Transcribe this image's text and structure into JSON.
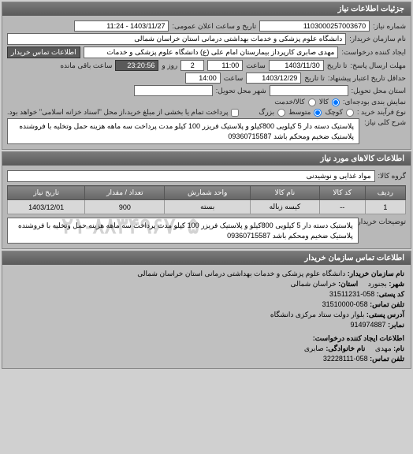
{
  "panels": {
    "details_header": "جزئیات اطلاعات نیاز",
    "goods_header": "اطلاعات کالاهای مورد نیاز",
    "contact_header": "اطلاعات تماس سازمان خریدار"
  },
  "labels": {
    "request_no": "شماره نیاز:",
    "announce_datetime": "تاریخ و ساعت اعلان عمومی:",
    "buyer_name": "نام سازمان خریدار:",
    "requester": "ایجاد کننده درخواست:",
    "buyer_contact": "اطلاعات تماس خریدار",
    "deadline_send": "مهلت ارسال پاسخ:",
    "to_date": "تا تاریخ",
    "hour": "ساعت",
    "days_and": "روز و",
    "remaining": "ساعت باقی مانده",
    "min_validity": "حداقل تاریخ اعتبار پیشنهاد:",
    "delivery_province": "استان محل تحویل:",
    "delivery_city": "شهر محل تحویل:",
    "display_budget": "نمایش بندی بودجه‌ای:",
    "kala": "کالا",
    "kharid": "کالا/خدمت",
    "agreement_type": "نوع فرآیند خرید :",
    "small": "کوچک",
    "medium": "متوسط",
    "large": "بزرگ",
    "full_payment": "پرداخت تمام یا بخشی از مبلغ خرید،از محل \"اسناد خزانه اسلامی\" خواهد بود.",
    "general_desc": "شرح کلی نیاز:",
    "goods_group": "گروه کالا:",
    "buyer_desc": "توضیحات خریدار:",
    "org_name": "نام سازمان خریدار:",
    "city": "شهر:",
    "province": "استان:",
    "postal": "کد پستی:",
    "phone": "تلفن تماس:",
    "address": "آدرس پستی:",
    "fax": "نمابر:",
    "req_contact_header": "اطلاعات ایجاد کننده درخواست:",
    "name": "نام:",
    "family": "نام خانوادگی:",
    "contact_phone": "تلفن تماس:"
  },
  "values": {
    "request_no": "1103000257003670",
    "announce_datetime": "1403/11/27 - 11:24",
    "buyer_name": "دانشگاه علوم پزشکی و خدمات بهداشتی درمانی استان خراسان شمالی",
    "requester": "مهدی صابری کارپرداز بیمارستان امام علی (ع) دانشگاه علوم پزشکی و خدمات",
    "deadline_date": "1403/11/30",
    "deadline_time": "11:00",
    "days_left": "2",
    "time_left": "23:20:56",
    "validity_date": "1403/12/29",
    "validity_time": "14:00",
    "desc": "پلاستیک دسته دار 5 کیلویی 800کیلو و پلاستیک فریزر 100 کیلو مدت پرداخت سه ماهه هزینه حمل وتخلیه با فروشنده پلاستیک ضخیم ومحکم باشد 09360715587",
    "goods_group": "مواد غذایی و نوشیدنی",
    "buyer_desc": "پلاستیک دسته دار 5 کیلویی 800کیلو و پلاستیک فریزر 100 کیلو مدت پرداخت سه ماهه هزینه حمل وتخلیه با فروشنده پلاستیک ضخیم ومحکم باشد 09360715587",
    "org_name": "دانشگاه علوم پزشکی و خدمات بهداشتی درمانی استان خراسان شمالی",
    "city": "بجنورد",
    "province": "خراسان شمالی",
    "postal": "058-31511231",
    "phone": "058-31510000",
    "address": "بلوار دولت ستاد مرکزی دانشگاه",
    "fax": "914974887",
    "req_name": "مهدی",
    "req_family": "صابری",
    "req_phone": "058-32228111"
  },
  "table": {
    "headers": [
      "ردیف",
      "کد کالا",
      "نام کالا",
      "واحد شمارش",
      "تعداد / مقدار",
      "تاریخ نیاز"
    ],
    "rows": [
      [
        "1",
        "--",
        "کیسه زباله",
        "بسته",
        "900",
        "1403/12/01"
      ]
    ]
  },
  "watermark": "۰۲۱-۸۸۳۴۹۶۷۰۵",
  "colors": {
    "header_bg": "#6a6a6a",
    "panel_bg": "#b8b8b8",
    "field_bg": "#ffffff"
  }
}
